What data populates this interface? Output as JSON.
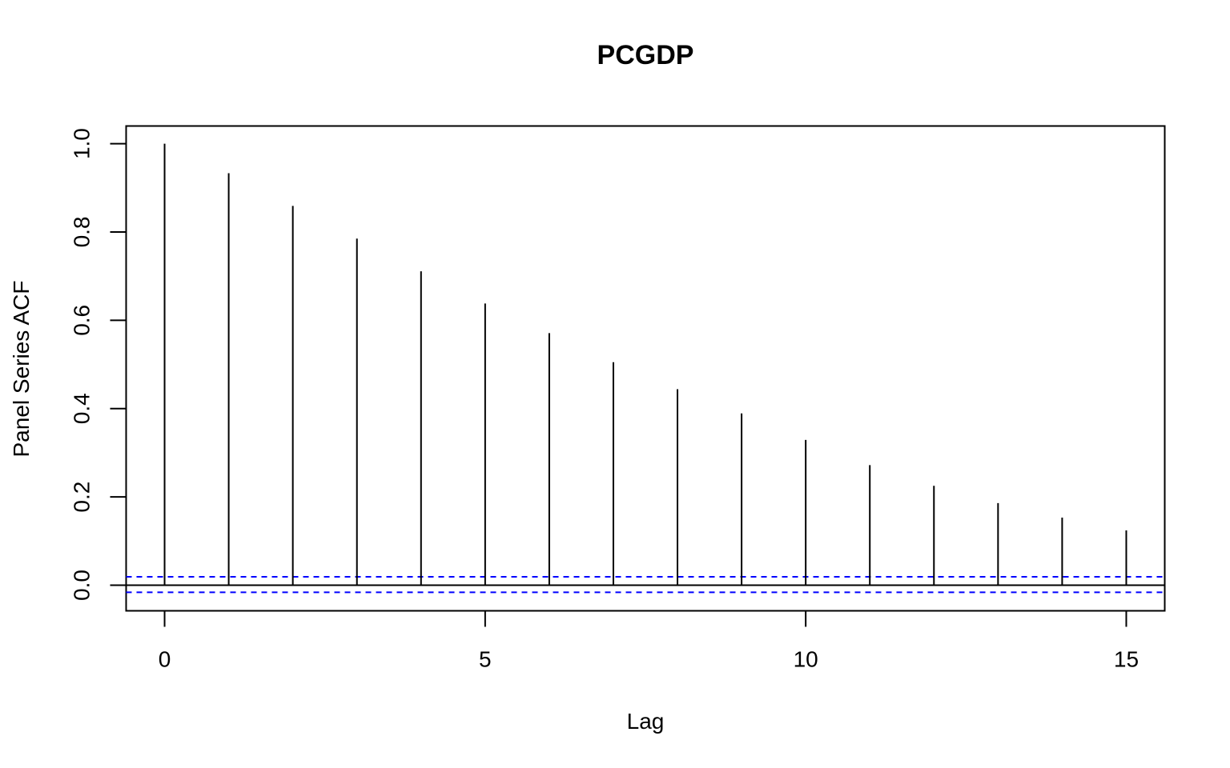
{
  "chart_data": {
    "type": "bar",
    "title": "PCGDP",
    "xlabel": "Lag",
    "ylabel": "Panel Series ACF",
    "x": [
      0,
      1,
      2,
      3,
      4,
      5,
      6,
      7,
      8,
      9,
      10,
      11,
      12,
      13,
      14,
      15
    ],
    "values": [
      1.0,
      0.933,
      0.859,
      0.785,
      0.711,
      0.638,
      0.571,
      0.505,
      0.444,
      0.389,
      0.329,
      0.272,
      0.225,
      0.186,
      0.153,
      0.124
    ],
    "xlim": [
      -0.6,
      15.6
    ],
    "ylim": [
      -0.058,
      1.04
    ],
    "x_ticks": [
      0,
      5,
      10,
      15
    ],
    "x_tick_labels": [
      "0",
      "5",
      "10",
      "15"
    ],
    "y_ticks": [
      0.0,
      0.2,
      0.4,
      0.6,
      0.8,
      1.0
    ],
    "y_tick_labels": [
      "0.0",
      "0.2",
      "0.4",
      "0.6",
      "0.8",
      "1.0"
    ],
    "confidence_bounds": [
      0.019,
      -0.016
    ],
    "zero_line": 0,
    "grid": false,
    "legend": "none",
    "colors": {
      "bars": "#000000",
      "bounds": "#0000ff",
      "frame": "#000000"
    }
  }
}
